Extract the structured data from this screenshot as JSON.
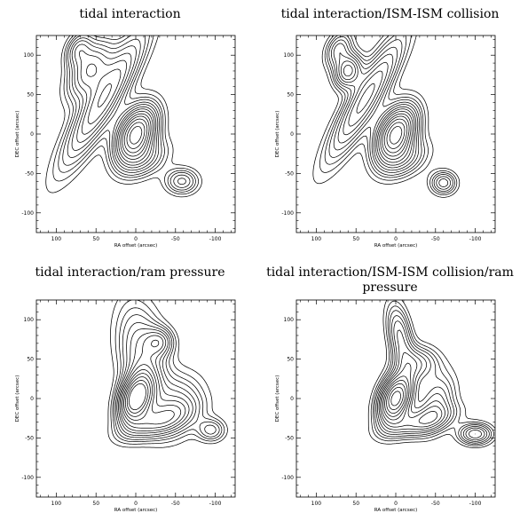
{
  "chart_data": [
    {
      "type": "contour",
      "title": "tidal interaction",
      "xlabel": "RA offset (arcsec)",
      "ylabel": "DEC offset (arcsec)",
      "xlim": [
        125,
        -125
      ],
      "ylim": [
        -125,
        125
      ],
      "xticks": [
        100,
        50,
        0,
        -50,
        -100
      ],
      "yticks": [
        -100,
        -50,
        0,
        50,
        100
      ],
      "components": [
        {
          "x": 0,
          "y": 0,
          "sx": 15,
          "sy": 25,
          "angle": 25,
          "amp": 1.0
        },
        {
          "x": 40,
          "y": 45,
          "sx": 14,
          "sy": 65,
          "angle": 30,
          "amp": 0.55
        },
        {
          "x": 58,
          "y": 82,
          "sx": 14,
          "sy": 28,
          "angle": 30,
          "amp": 0.45
        },
        {
          "x": 72,
          "y": 108,
          "sx": 10,
          "sy": 16,
          "angle": 25,
          "amp": 0.3
        },
        {
          "x": -12,
          "y": -32,
          "sx": 22,
          "sy": 14,
          "angle": -30,
          "amp": 0.25
        },
        {
          "x": -58,
          "y": -60,
          "sx": 14,
          "sy": 11,
          "angle": 0,
          "amp": 0.3
        }
      ],
      "levels": [
        0.06,
        0.1,
        0.14,
        0.18,
        0.23,
        0.28,
        0.34,
        0.4,
        0.47,
        0.55,
        0.63,
        0.72,
        0.82,
        0.92
      ]
    },
    {
      "type": "contour",
      "title": "tidal interaction/ISM-ISM collision",
      "xlabel": "RA offset (arcsec)",
      "ylabel": "DEC offset (arcsec)",
      "xlim": [
        125,
        -125
      ],
      "ylim": [
        -125,
        125
      ],
      "xticks": [
        100,
        50,
        0,
        -50,
        -100
      ],
      "yticks": [
        -100,
        -50,
        0,
        50,
        100
      ],
      "components": [
        {
          "x": 0,
          "y": 0,
          "sx": 15,
          "sy": 25,
          "angle": 25,
          "amp": 1.0
        },
        {
          "x": 38,
          "y": 45,
          "sx": 13,
          "sy": 60,
          "angle": 30,
          "amp": 0.5
        },
        {
          "x": 60,
          "y": 80,
          "sx": 11,
          "sy": 15,
          "angle": 20,
          "amp": 0.5
        },
        {
          "x": 72,
          "y": 108,
          "sx": 10,
          "sy": 16,
          "angle": 25,
          "amp": 0.3
        },
        {
          "x": -12,
          "y": -32,
          "sx": 22,
          "sy": 14,
          "angle": -30,
          "amp": 0.25
        },
        {
          "x": -60,
          "y": -62,
          "sx": 11,
          "sy": 10,
          "angle": 0,
          "amp": 0.32
        }
      ],
      "levels": [
        0.06,
        0.1,
        0.14,
        0.18,
        0.23,
        0.28,
        0.34,
        0.4,
        0.47,
        0.55,
        0.63,
        0.72,
        0.82,
        0.92
      ]
    },
    {
      "type": "contour",
      "title": "tidal interaction/ram pressure",
      "xlabel": "RA offset (arcsec)",
      "ylabel": "DEC offset (arcsec)",
      "xlim": [
        125,
        -125
      ],
      "ylim": [
        -125,
        125
      ],
      "xticks": [
        100,
        50,
        0,
        -50,
        -100
      ],
      "yticks": [
        -100,
        -50,
        0,
        50,
        100
      ],
      "components": [
        {
          "x": 0,
          "y": 0,
          "sx": 13,
          "sy": 22,
          "angle": 20,
          "amp": 1.0
        },
        {
          "x": -8,
          "y": 55,
          "sx": 20,
          "sy": 45,
          "angle": -10,
          "amp": 0.35
        },
        {
          "x": -30,
          "y": 72,
          "sx": 12,
          "sy": 12,
          "angle": 0,
          "amp": 0.3
        },
        {
          "x": -50,
          "y": -10,
          "sx": 22,
          "sy": 28,
          "angle": 30,
          "amp": 0.3
        },
        {
          "x": -25,
          "y": -30,
          "sx": 30,
          "sy": 12,
          "angle": -20,
          "amp": 0.35
        },
        {
          "x": -95,
          "y": -40,
          "sx": 12,
          "sy": 10,
          "angle": 0,
          "amp": 0.25
        }
      ],
      "levels": [
        0.06,
        0.1,
        0.14,
        0.18,
        0.23,
        0.28,
        0.34,
        0.4,
        0.47,
        0.55,
        0.63,
        0.72,
        0.82,
        0.92
      ]
    },
    {
      "type": "contour",
      "title": "tidal interaction/ISM-ISM collision/ram pressure",
      "xlabel": "RA offset (arcsec)",
      "ylabel": "DEC offset (arcsec)",
      "xlim": [
        125,
        -125
      ],
      "ylim": [
        -125,
        125
      ],
      "xticks": [
        100,
        50,
        0,
        -50,
        -100
      ],
      "yticks": [
        -100,
        -50,
        0,
        50,
        100
      ],
      "components": [
        {
          "x": 0,
          "y": 0,
          "sx": 13,
          "sy": 22,
          "angle": 20,
          "amp": 1.0
        },
        {
          "x": -5,
          "y": 80,
          "sx": 10,
          "sy": 28,
          "angle": -10,
          "amp": 0.35
        },
        {
          "x": -28,
          "y": 45,
          "sx": 18,
          "sy": 15,
          "angle": 0,
          "amp": 0.3
        },
        {
          "x": -50,
          "y": -5,
          "sx": 15,
          "sy": 25,
          "angle": 20,
          "amp": 0.3
        },
        {
          "x": -30,
          "y": -30,
          "sx": 30,
          "sy": 11,
          "angle": -15,
          "amp": 0.35
        },
        {
          "x": -100,
          "y": -45,
          "sx": 14,
          "sy": 9,
          "angle": 0,
          "amp": 0.4
        }
      ],
      "levels": [
        0.06,
        0.1,
        0.14,
        0.18,
        0.23,
        0.28,
        0.34,
        0.4,
        0.47,
        0.55,
        0.63,
        0.72,
        0.82,
        0.92
      ]
    }
  ]
}
